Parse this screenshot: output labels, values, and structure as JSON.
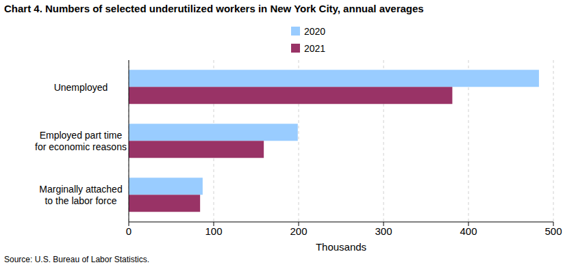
{
  "chart_data": {
    "type": "bar",
    "orientation": "horizontal",
    "title": "Chart 4. Numbers of selected underutilized workers in New York City, annual averages",
    "categories": [
      "Unemployed",
      "Employed part time\nfor economic reasons",
      "Marginally attached\nto the labor force"
    ],
    "series": [
      {
        "name": "2020",
        "color": "#99ccff",
        "values": [
          483,
          199,
          87
        ]
      },
      {
        "name": "2021",
        "color": "#993366",
        "values": [
          381,
          159,
          84
        ]
      }
    ],
    "xlabel": "Thousands",
    "xlim": [
      0,
      500
    ],
    "xticks": [
      0,
      100,
      200,
      300,
      400,
      500
    ],
    "grid": true,
    "legend": "top",
    "source": "Source: U.S. Bureau of Labor Statistics."
  }
}
